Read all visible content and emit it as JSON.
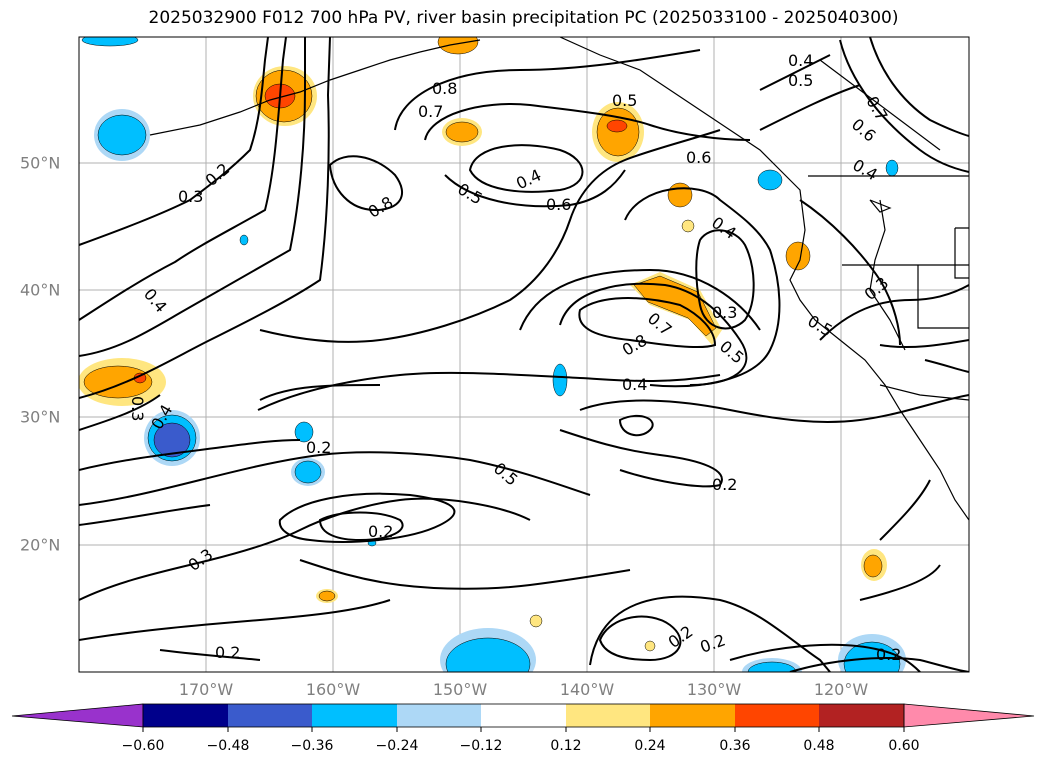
{
  "title": "2025032900 F012 700 hPa PV, river basin precipitation PC (2025033100 - 2025040300)",
  "map": {
    "latitude_labels": [
      "50°N",
      "40°N",
      "30°N",
      "20°N"
    ],
    "longitude_labels": [
      "170°W",
      "160°W",
      "150°W",
      "140°W",
      "130°W",
      "120°W"
    ],
    "contour_color": "#000000",
    "gridline_color": "#b0b0b0",
    "contour_labels": [
      "0.4",
      "0.5",
      "0.8",
      "0.7",
      "0.5",
      "0.2",
      "0.3",
      "0.8",
      "0.5",
      "0.4",
      "0.6",
      "0.6",
      "0.7",
      "0.6",
      "0.4",
      "0.4",
      "0.3",
      "0.5",
      "0.4",
      "0.7",
      "0.8",
      "0.3",
      "0.5",
      "0.4",
      "0.3",
      "0.4",
      "0.2",
      "0.5",
      "0.2",
      "0.2",
      "0.3",
      "0.2",
      "0.2"
    ]
  },
  "colorbar": {
    "ticks": [
      "−0.60",
      "−0.48",
      "−0.36",
      "−0.24",
      "−0.12",
      "0.12",
      "0.24",
      "0.36",
      "0.48",
      "0.60"
    ],
    "colors": [
      "#9932cc",
      "#00008b",
      "#3a5bcc",
      "#00bfff",
      "#add8f6",
      "#ffffff",
      "#ffe680",
      "#ffa500",
      "#ff4500",
      "#b22222",
      "#ff8aab"
    ]
  }
}
